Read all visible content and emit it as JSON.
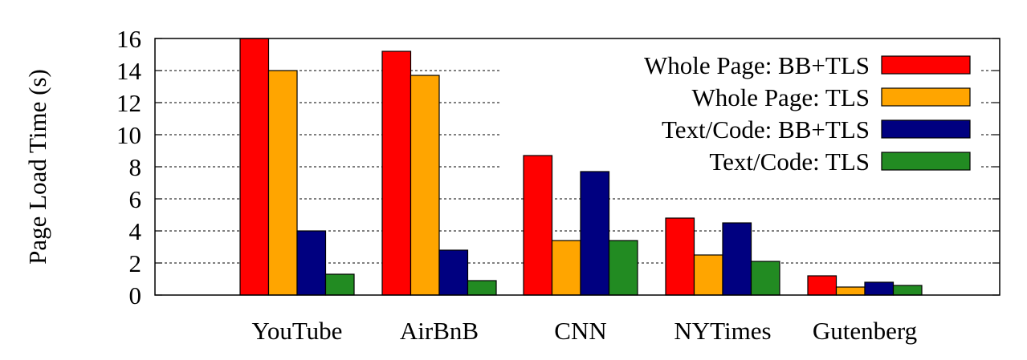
{
  "chart_data": {
    "type": "bar",
    "title": "",
    "xlabel": "",
    "ylabel": "Page Load Time (s)",
    "ylim": [
      0,
      16
    ],
    "yticks": [
      0,
      2,
      4,
      6,
      8,
      10,
      12,
      14,
      16
    ],
    "grid": "horizontal-dashed",
    "legend_position": "top-right",
    "categories": [
      "YouTube",
      "AirBnB",
      "CNN",
      "NYTimes",
      "Gutenberg"
    ],
    "series": [
      {
        "name": "Whole Page: BB+TLS",
        "color": "#ff0000",
        "values": [
          16.0,
          15.2,
          8.7,
          4.8,
          1.2
        ]
      },
      {
        "name": "Whole Page: TLS",
        "color": "#ffa500",
        "values": [
          14.0,
          13.7,
          3.4,
          2.5,
          0.5
        ]
      },
      {
        "name": "Text/Code: BB+TLS",
        "color": "#000080",
        "values": [
          4.0,
          2.8,
          7.7,
          4.5,
          0.8
        ]
      },
      {
        "name": "Text/Code: TLS",
        "color": "#228b22",
        "values": [
          1.3,
          0.9,
          3.4,
          2.1,
          0.6
        ]
      }
    ]
  }
}
